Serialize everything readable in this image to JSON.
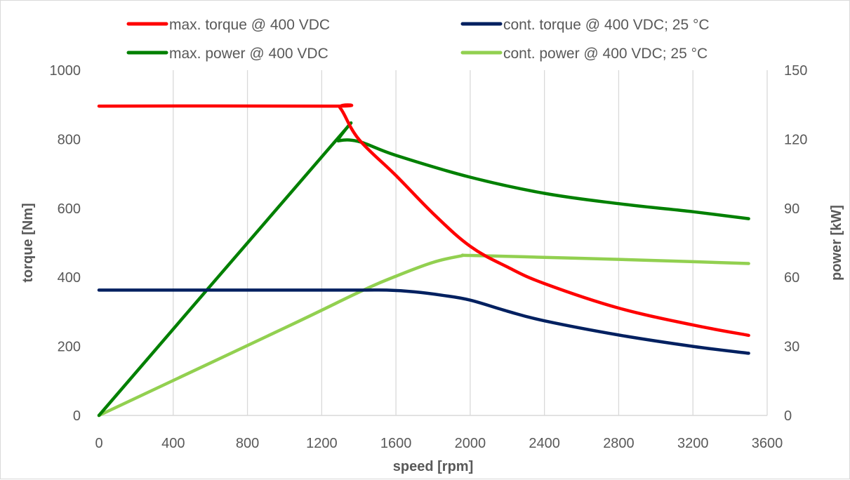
{
  "chart_data": {
    "type": "line",
    "title": "",
    "xlabel": "speed [rpm]",
    "ylabel": "torque [Nm]",
    "y2label": "power [kW]",
    "xlim": [
      0,
      3600
    ],
    "ylim": [
      0,
      1000
    ],
    "y2lim": [
      0,
      150
    ],
    "x_ticks": [
      0,
      400,
      800,
      1200,
      1600,
      2000,
      2400,
      2800,
      3200,
      3600
    ],
    "y_ticks": [
      0,
      200,
      400,
      600,
      800,
      1000
    ],
    "y2_ticks": [
      0,
      30,
      60,
      90,
      120,
      150
    ],
    "grid": "vertical",
    "legend_position": "top",
    "series": [
      {
        "name": "max. torque @ 400 VDC",
        "axis": "left",
        "color": "#ff0000",
        "points": [
          [
            0,
            896
          ],
          [
            1250,
            896
          ],
          [
            1300,
            890
          ],
          [
            1400,
            800
          ],
          [
            1600,
            695
          ],
          [
            1800,
            585
          ],
          [
            2000,
            490
          ],
          [
            2200,
            430
          ],
          [
            2400,
            382
          ],
          [
            2800,
            311
          ],
          [
            3200,
            262
          ],
          [
            3500,
            232
          ]
        ]
      },
      {
        "name": "cont. torque @ 400 VDC; 25 °C",
        "axis": "left",
        "color": "#002060",
        "points": [
          [
            0,
            363
          ],
          [
            1000,
            363
          ],
          [
            1400,
            363
          ],
          [
            1550,
            363
          ],
          [
            1700,
            358
          ],
          [
            1850,
            348
          ],
          [
            2000,
            334
          ],
          [
            2200,
            302
          ],
          [
            2400,
            274
          ],
          [
            2800,
            233
          ],
          [
            3200,
            200
          ],
          [
            3500,
            180
          ]
        ]
      },
      {
        "name": "max. power @ 400 VDC",
        "axis": "right",
        "color": "#008000",
        "points": [
          [
            0,
            0
          ],
          [
            1250,
            117
          ],
          [
            1290,
            119.3
          ],
          [
            1400,
            119
          ],
          [
            1600,
            113
          ],
          [
            2000,
            103.5
          ],
          [
            2400,
            96.5
          ],
          [
            2800,
            92
          ],
          [
            3200,
            88.5
          ],
          [
            3500,
            85.5
          ]
        ]
      },
      {
        "name": "cont. power @ 400 VDC; 25 °C",
        "axis": "right",
        "color": "#92d050",
        "points": [
          [
            0,
            0
          ],
          [
            1000,
            38
          ],
          [
            1400,
            53.5
          ],
          [
            1600,
            60.5
          ],
          [
            1800,
            66.5
          ],
          [
            1950,
            69.3
          ],
          [
            2000,
            69.5
          ],
          [
            2400,
            68.7
          ],
          [
            2800,
            67.8
          ],
          [
            3200,
            66.8
          ],
          [
            3500,
            66
          ]
        ]
      }
    ]
  }
}
